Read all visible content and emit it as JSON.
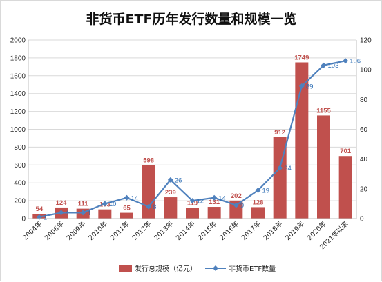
{
  "chart_data": {
    "type": "bar",
    "title": "非货币ETF历年发行数量和规模一览",
    "categories": [
      "2004年",
      "2006年",
      "2009年",
      "2010年",
      "2011年",
      "2012年",
      "2013年",
      "2014年",
      "2015年",
      "2016年",
      "2017年",
      "2018年",
      "2019年",
      "2020年",
      "2021年以来"
    ],
    "series": [
      {
        "name": "发行总规模（亿元）",
        "type": "bar",
        "axis": "left",
        "values": [
          54,
          124,
          111,
          103,
          65,
          598,
          239,
          119,
          131,
          202,
          128,
          912,
          1749,
          1155,
          701
        ],
        "labels": [
          "54",
          "124",
          "111",
          "103",
          "65",
          "598",
          "239",
          "119",
          "131",
          "202",
          "128",
          "912",
          "1749",
          "1155",
          "701"
        ]
      },
      {
        "name": "非货币ETF数量",
        "type": "line",
        "axis": "right",
        "values": [
          1,
          4,
          4,
          10,
          14,
          8,
          26,
          12,
          14,
          9,
          19,
          34,
          89,
          103,
          106
        ],
        "labels": [
          "1",
          "4",
          "4",
          "10",
          "14",
          "8",
          "26",
          "12",
          "14",
          "9",
          "19",
          "34",
          "89",
          "103",
          "106"
        ]
      }
    ],
    "ylim_left": [
      0,
      2000
    ],
    "yticks_left": [
      "0",
      "200",
      "400",
      "600",
      "800",
      "1000",
      "1200",
      "1400",
      "1600",
      "1800",
      "2000"
    ],
    "ylim_right": [
      0,
      120
    ],
    "yticks_right": [
      "0",
      "20",
      "40",
      "60",
      "80",
      "100",
      "120"
    ],
    "grid": true,
    "legend": "bottom",
    "colors": {
      "bar": "#c0504d",
      "line": "#4f81bd",
      "grid": "#d9d9d9"
    }
  }
}
